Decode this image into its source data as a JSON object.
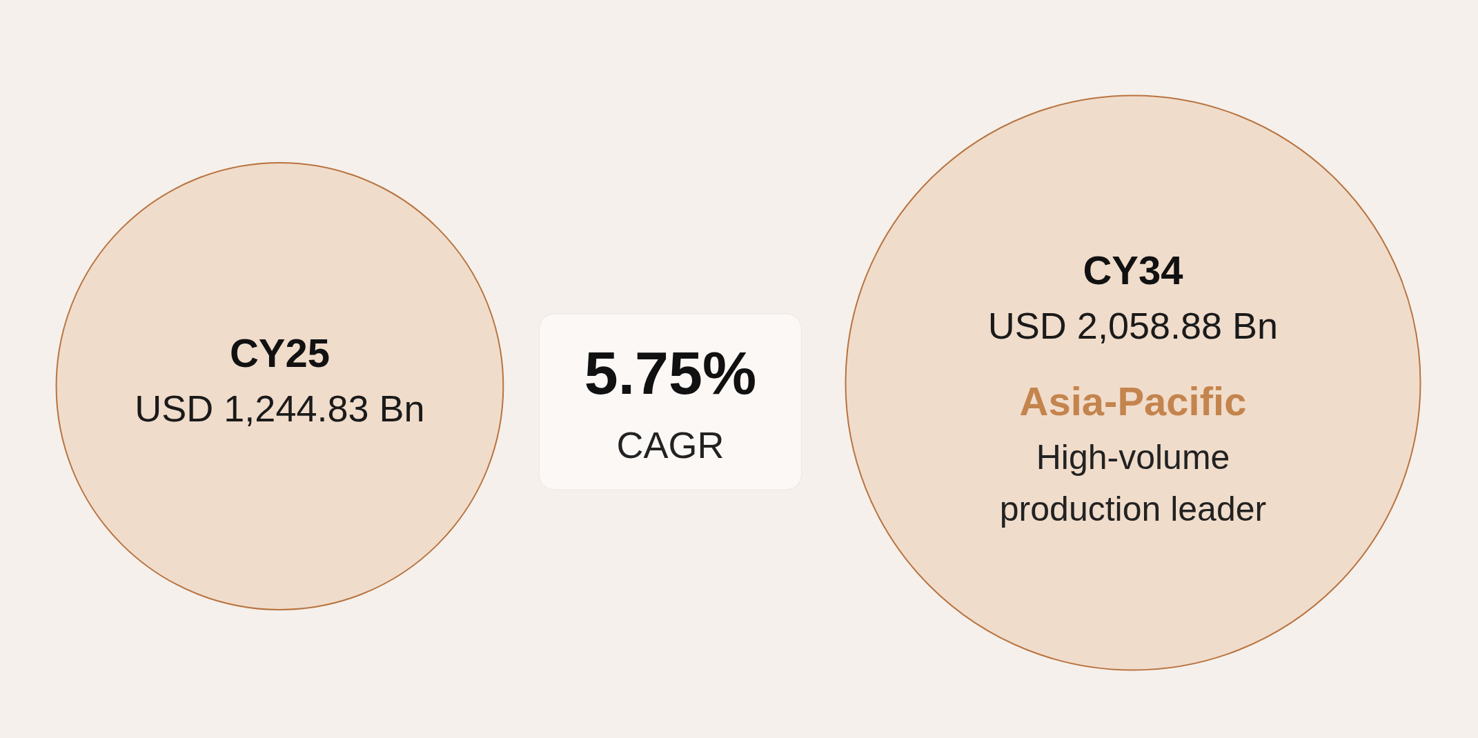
{
  "chart_data": {
    "type": "other",
    "categories": [
      "CY25",
      "CY34"
    ],
    "values": [
      1244.83,
      2058.88
    ],
    "value_labels": [
      "USD 1,244.83 Bn",
      "USD 2,058.88 Bn"
    ],
    "colors": [
      "#f0dccb",
      "#f0dccb"
    ],
    "annotations": [
      "5.75%",
      "CAGR",
      "Asia-Pacific",
      "High-volume",
      "production leader"
    ]
  }
}
